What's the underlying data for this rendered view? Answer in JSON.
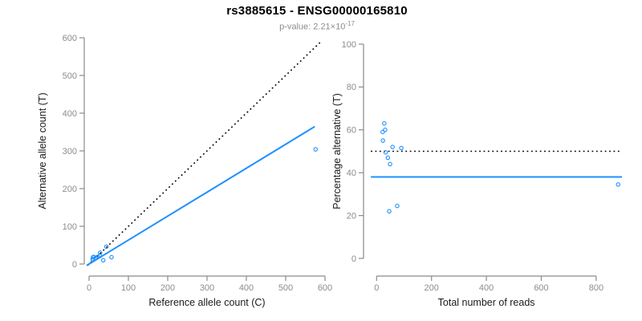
{
  "header": {
    "title": "rs3885615 - ENSG00000165810",
    "p_value_prefix": "p-value: 2.21×10",
    "p_value_exponent": "-17"
  },
  "colors": {
    "point_blue": "#1E90FF",
    "line_blue": "#1E90FF",
    "reference_black": "#000000",
    "axis_gray": "#8a8a8a",
    "tick_label_gray": "#8c8c8c",
    "subtitle_gray": "#8c8c8c",
    "background": "#ffffff"
  },
  "chart_data": [
    {
      "id": "allele-counts",
      "type": "scatter",
      "title": "rs3885615 - ENSG00000165810",
      "subtitle": "p-value: 2.21×10^-17",
      "xlabel": "Reference allele count (C)",
      "ylabel": "Alternative allele count (T)",
      "xlim": [
        0,
        600
      ],
      "ylim": [
        0,
        600
      ],
      "xticks": [
        0,
        100,
        200,
        300,
        400,
        500,
        600
      ],
      "yticks": [
        0,
        100,
        200,
        300,
        400,
        500,
        600
      ],
      "grid": false,
      "legend": "none",
      "marker": "open-circle",
      "points": [
        [
          10,
          18
        ],
        [
          9,
          13
        ],
        [
          12,
          19
        ],
        [
          10,
          13
        ],
        [
          28,
          30
        ],
        [
          44,
          46
        ],
        [
          17,
          16
        ],
        [
          22,
          19
        ],
        [
          27,
          22
        ],
        [
          57,
          18
        ],
        [
          36,
          10
        ],
        [
          576,
          304
        ]
      ],
      "lines": [
        {
          "name": "identity-line",
          "style": "dotted",
          "color": "#000000",
          "slope": 1,
          "intercept": 0
        },
        {
          "name": "regression-line",
          "style": "solid",
          "color": "#1E90FF",
          "slope": 0.635,
          "intercept": 0
        }
      ]
    },
    {
      "id": "percentage-vs-depth",
      "type": "scatter",
      "xlabel": "Total number of reads",
      "ylabel": "Percentage alternative (T)",
      "xlim": [
        0,
        900
      ],
      "ylim": [
        0,
        100
      ],
      "xticks": [
        0,
        200,
        400,
        600,
        800
      ],
      "yticks": [
        0,
        20,
        40,
        60,
        80,
        100
      ],
      "grid": false,
      "legend": "none",
      "marker": "open-circle",
      "points": [
        [
          28,
          63
        ],
        [
          22,
          59
        ],
        [
          31,
          60
        ],
        [
          23,
          55
        ],
        [
          58,
          52
        ],
        [
          90,
          51.5
        ],
        [
          33,
          49.5
        ],
        [
          41,
          47
        ],
        [
          49,
          44
        ],
        [
          75,
          24.5
        ],
        [
          46,
          22
        ],
        [
          880,
          34.5
        ]
      ],
      "lines": [
        {
          "name": "fifty-percent-reference-line",
          "style": "dotted",
          "color": "#000000",
          "y": 50
        },
        {
          "name": "mean-percentage-line",
          "style": "solid",
          "color": "#1E90FF",
          "y": 38
        }
      ]
    }
  ]
}
